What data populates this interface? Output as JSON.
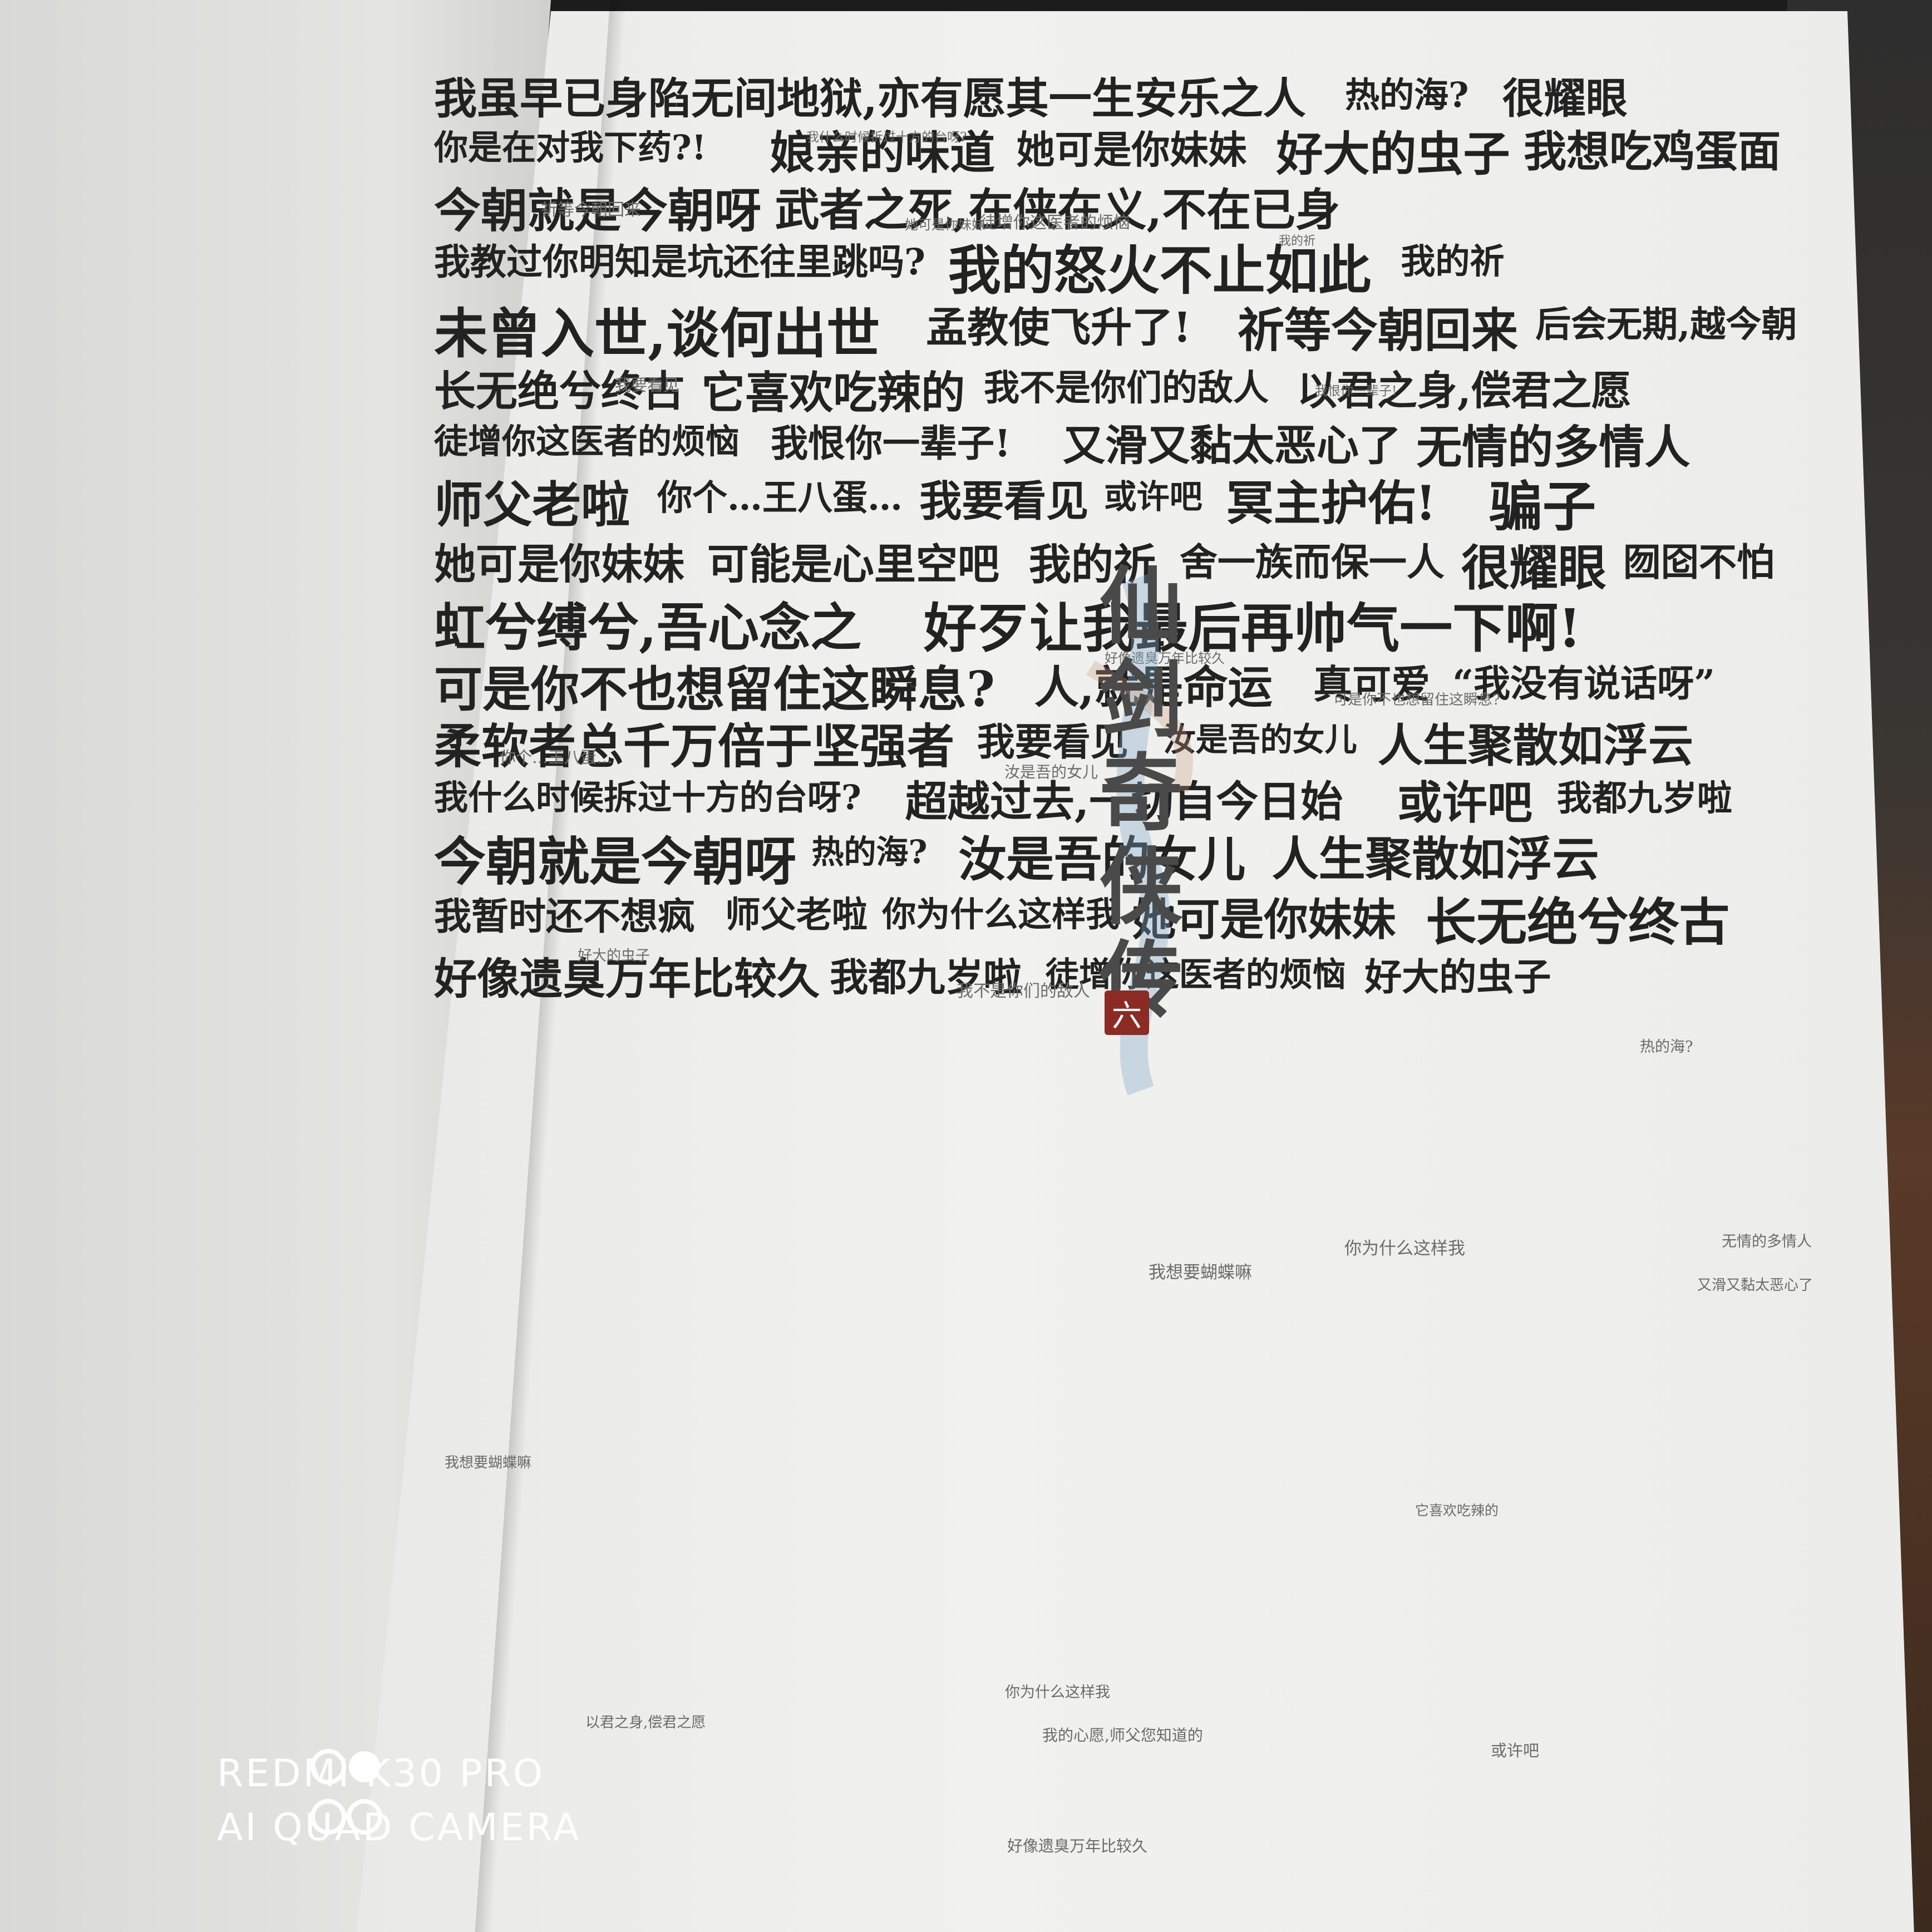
{
  "book_page": {
    "logo": {
      "title": "仙剑奇侠传",
      "seal": "六"
    },
    "phrases_large": [
      "我虽早已身陷无间地狱,亦有愿其一生安乐之人",
      "热的海?",
      "很耀眼",
      "你是在对我下药?!",
      "娘亲的味道",
      "她可是你妹妹",
      "好大的虫子",
      "我想吃鸡蛋面",
      "今朝就是今朝呀",
      "武者之死,在侠在义,不在已身",
      "我教过你明知是坑还往里跳吗?",
      "我的怒火不止如此",
      "我的祈",
      "未曾入世,谈何出世",
      "孟教使飞升了!",
      "祈等今朝回来",
      "后会无期,越今朝",
      "长无绝兮终古",
      "它喜欢吃辣的",
      "我不是你们的敌人",
      "以君之身,偿君之愿",
      "徒增你这医者的烦恼",
      "我恨你一辈子!",
      "又滑又黏太恶心了",
      "无情的多情人",
      "师父老啦",
      "你个…王八蛋…",
      "我要看见",
      "或许吧",
      "冥主护佑!",
      "骗子",
      "她可是你妹妹",
      "可能是心里空吧",
      "我的祈",
      "舍一族而保一人",
      "很耀眼",
      "囫囵不怕",
      "虹兮缚兮,吾心念之",
      "好歹让我最后再帅气一下啊!",
      "可是你不也想留住这瞬息?",
      "人,就是命运",
      "真可爱",
      "“我没有说话呀”",
      "柔软者总千万倍于坚强者",
      "我要看见",
      "汝是吾的女儿",
      "人生聚散如浮云",
      "我什么时候拆过十方的台呀?",
      "超越过去,一切自今日始",
      "或许吧",
      "我都九岁啦",
      "今朝就是今朝呀",
      "热的海?",
      "汝是吾的女儿",
      "人生聚散如浮云",
      "我暂时还不想疯",
      "师父老啦",
      "你为什么这样我",
      "她可是你妹妹",
      "长无绝兮终古",
      "好像遗臭万年比较久",
      "我都九岁啦",
      "徒增你这医者的烦恼",
      "好大的虫子"
    ],
    "phrases_small": [
      "我要看见",
      "我的祈",
      "好大的虫子",
      "我想要蝴蝶嘛",
      "可是你不也想留住这瞬息?",
      "你为什么这样我",
      "她可是你妹妹",
      "祈等今朝回来",
      "我什么时候拆过十方的台呀?",
      "汝是吾的女儿",
      "热的海?",
      "以君之身,偿君之愿",
      "我的心愿,师父您知道的",
      "好像遗臭万年比较久",
      "我不是你们的敌人",
      "或许吧",
      "无情的多情人",
      "徒增你这医者的烦恼",
      "我想要蝴蝶嘛",
      "它喜欢吃辣的",
      "你为什么这样我",
      "你个…王八蛋…",
      "又滑又黏太恶心了",
      "我恨你一辈子!",
      "好像遗臭万年比较久"
    ]
  },
  "watermark": {
    "line1": "REDMI K30 PRO",
    "line2": "AI QUAD CAMERA"
  }
}
